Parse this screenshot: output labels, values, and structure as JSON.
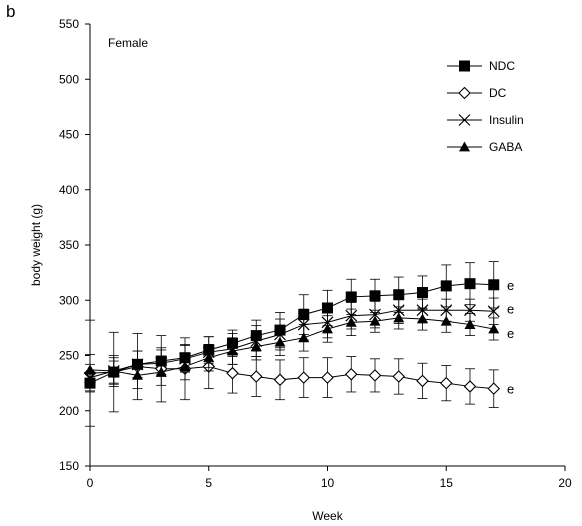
{
  "panel_label": "b",
  "chart_data": {
    "type": "line",
    "annotation": "Female",
    "xlabel": "Week",
    "ylabel": "body weight (g)",
    "xlim": [
      0,
      20
    ],
    "ylim": [
      150,
      550
    ],
    "xticks": [
      0,
      5,
      10,
      15,
      20
    ],
    "yticks": [
      150,
      200,
      250,
      300,
      350,
      400,
      450,
      500,
      550
    ],
    "grid": false,
    "legend_position": "top-right",
    "x": [
      0,
      1,
      2,
      3,
      4,
      5,
      6,
      7,
      8,
      9,
      10,
      11,
      12,
      13,
      14,
      15,
      16,
      17
    ],
    "series": [
      {
        "name": "NDC",
        "marker": "filled-square",
        "values": [
          225,
          235,
          242,
          245,
          248,
          255,
          261,
          268,
          273,
          287,
          293,
          303,
          304,
          305,
          307,
          313,
          315,
          314
        ],
        "errors": [
          8,
          10,
          12,
          12,
          12,
          12,
          12,
          14,
          16,
          18,
          16,
          16,
          15,
          16,
          15,
          19,
          19,
          21
        ],
        "end_label": "e"
      },
      {
        "name": "DC",
        "marker": "open-diamond",
        "values": [
          234,
          235,
          240,
          238,
          238,
          240,
          234,
          231,
          228,
          230,
          230,
          233,
          232,
          231,
          227,
          225,
          222,
          220
        ],
        "errors": [
          48,
          36,
          30,
          30,
          28,
          20,
          18,
          18,
          18,
          18,
          18,
          16,
          15,
          16,
          16,
          16,
          16,
          17
        ],
        "end_label": "e"
      },
      {
        "name": "Insulin",
        "marker": "cross",
        "values": [
          230,
          236,
          242,
          243,
          247,
          253,
          256,
          263,
          269,
          278,
          280,
          286,
          287,
          291,
          291,
          291,
          291,
          290
        ],
        "errors": [
          12,
          14,
          12,
          12,
          12,
          14,
          14,
          14,
          14,
          14,
          14,
          12,
          12,
          12,
          10,
          10,
          10,
          12
        ],
        "end_label": "e"
      },
      {
        "name": "GABA",
        "marker": "filled-triangle",
        "values": [
          237,
          236,
          232,
          235,
          240,
          248,
          254,
          258,
          262,
          266,
          274,
          280,
          281,
          284,
          283,
          281,
          278,
          274
        ],
        "errors": [
          14,
          12,
          12,
          12,
          12,
          12,
          12,
          12,
          12,
          12,
          12,
          12,
          10,
          10,
          10,
          10,
          10,
          10
        ],
        "end_label": "e"
      }
    ]
  }
}
